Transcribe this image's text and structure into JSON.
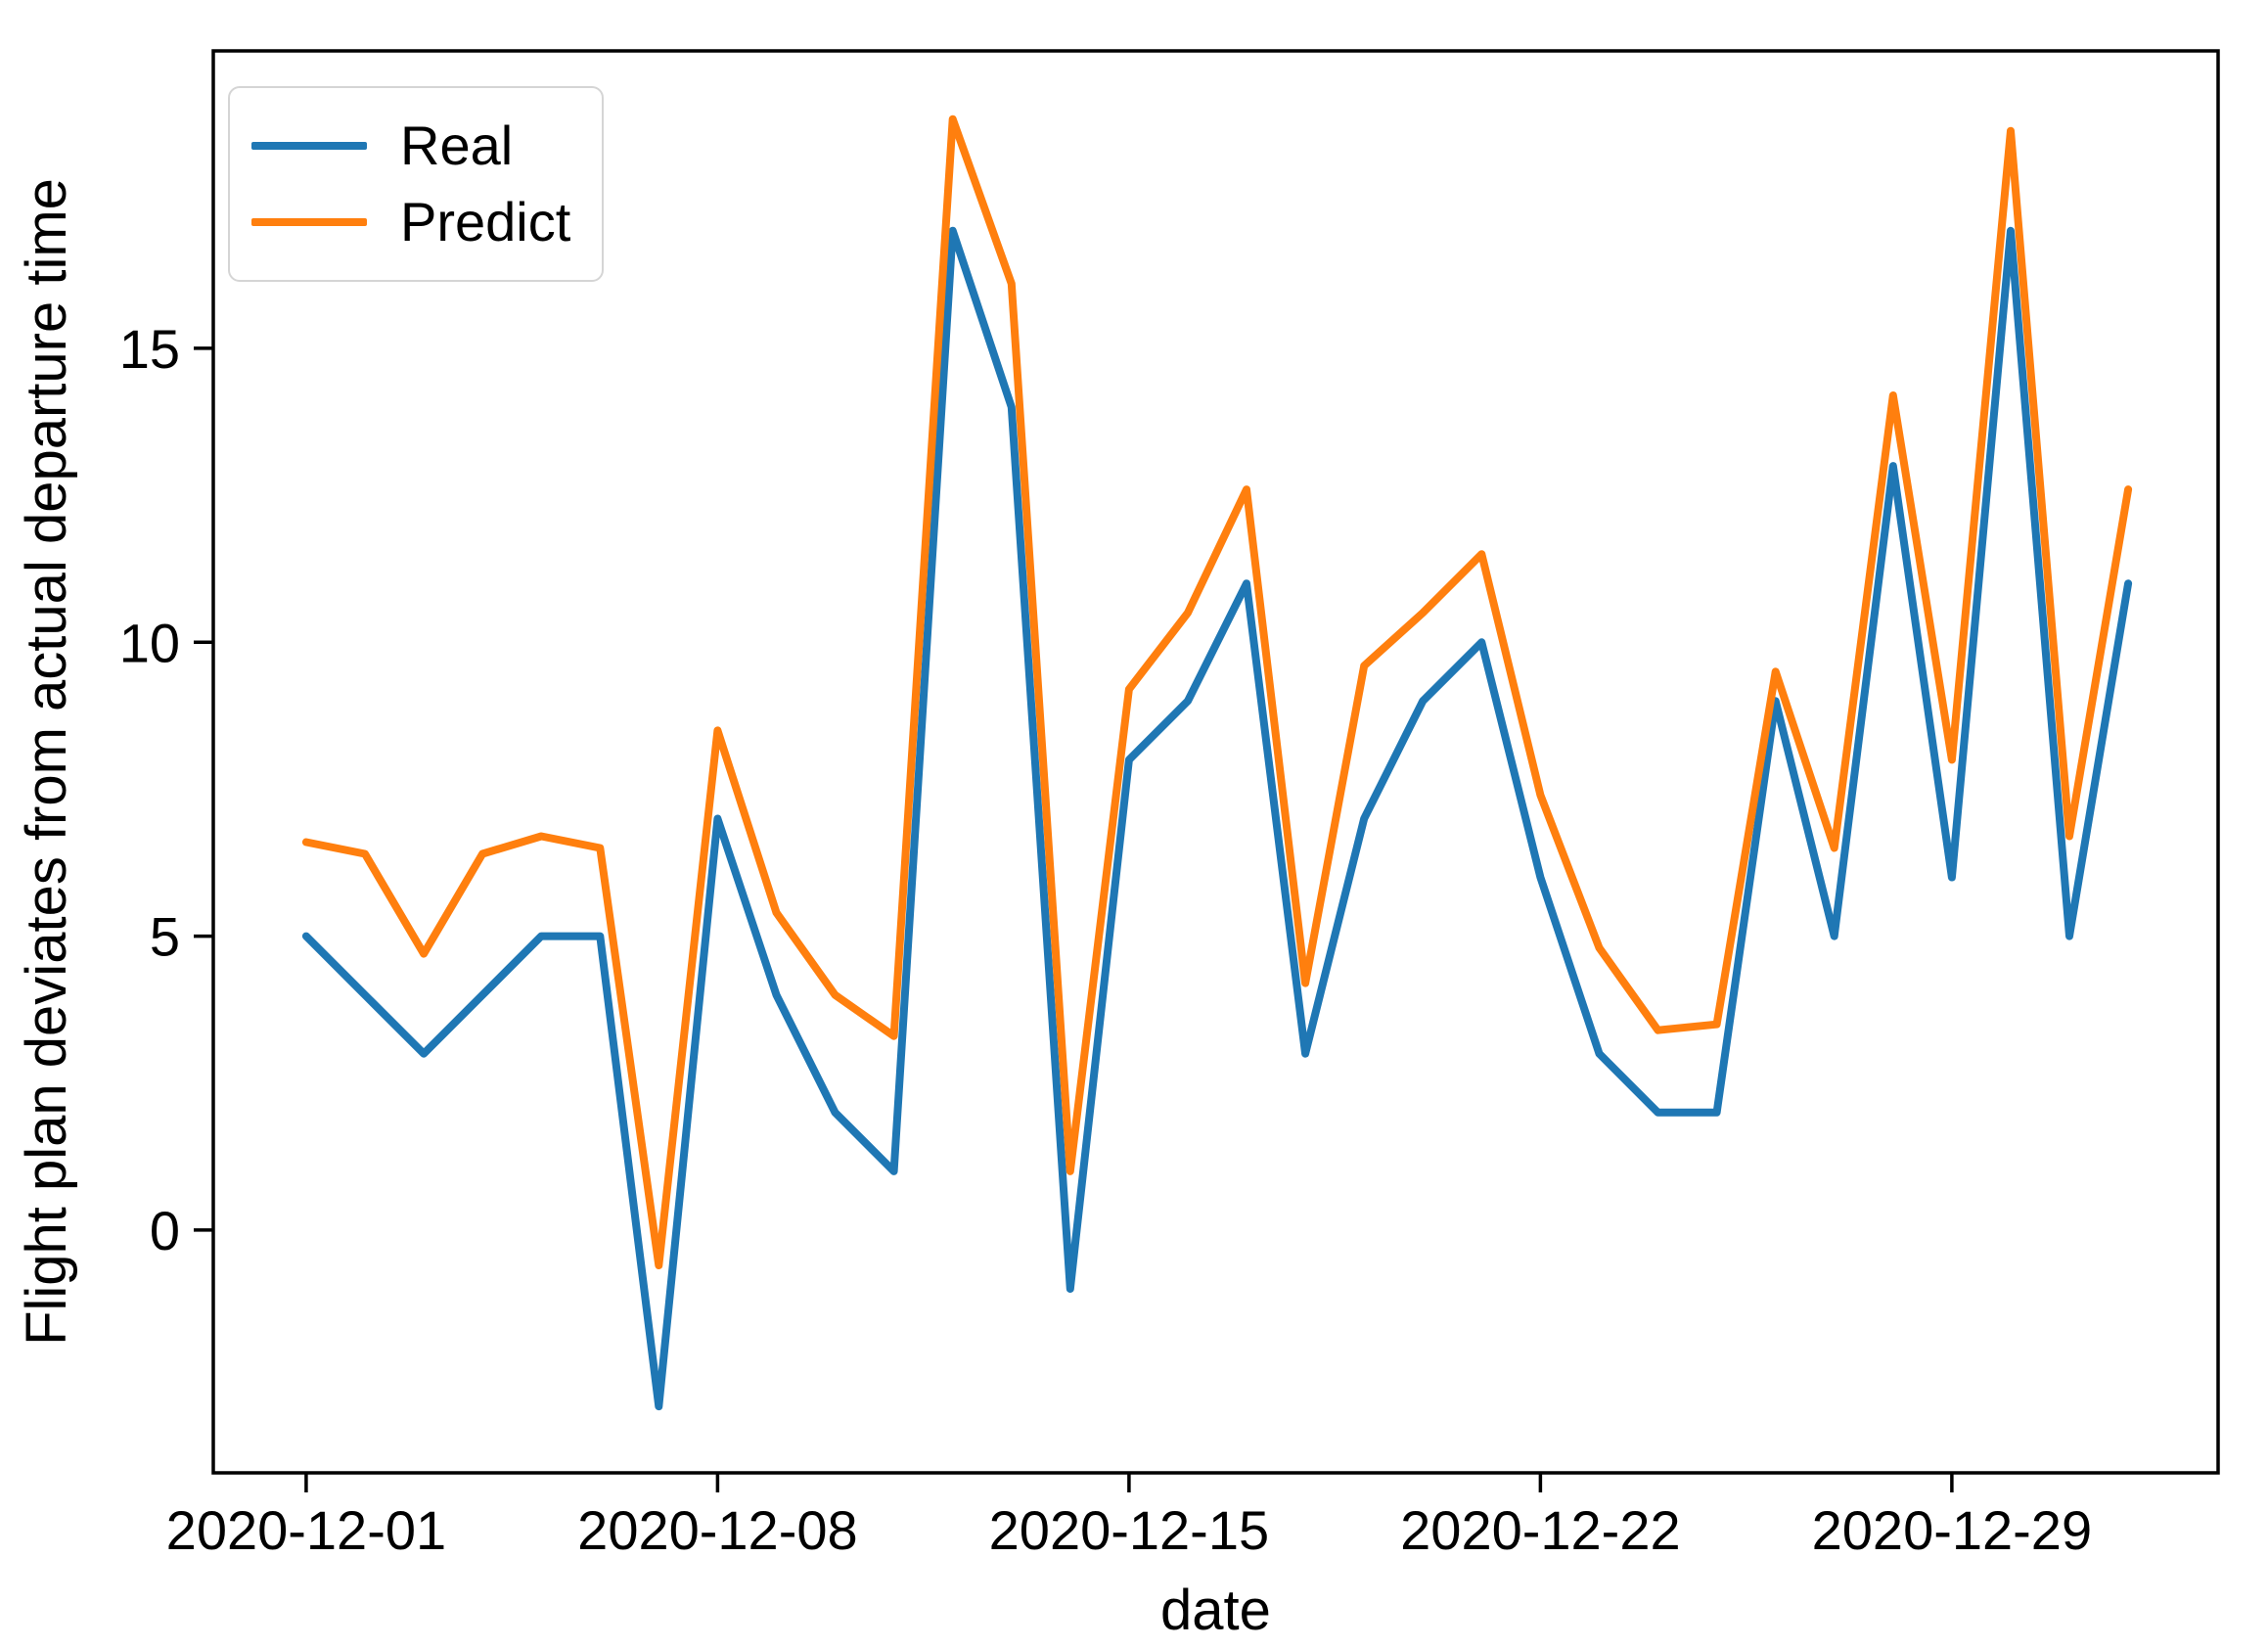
{
  "chart_data": {
    "type": "line",
    "title": "",
    "xlabel": "date",
    "ylabel": "Flight plan deviates from actual departure time",
    "x": [
      "2020-12-01",
      "2020-12-02",
      "2020-12-03",
      "2020-12-04",
      "2020-12-05",
      "2020-12-06",
      "2020-12-07",
      "2020-12-08",
      "2020-12-09",
      "2020-12-10",
      "2020-12-11",
      "2020-12-12",
      "2020-12-13",
      "2020-12-14",
      "2020-12-15",
      "2020-12-16",
      "2020-12-17",
      "2020-12-18",
      "2020-12-19",
      "2020-12-20",
      "2020-12-21",
      "2020-12-22",
      "2020-12-23",
      "2020-12-24",
      "2020-12-25",
      "2020-12-26",
      "2020-12-27",
      "2020-12-28",
      "2020-12-29",
      "2020-12-30",
      "2020-12-31",
      "2021-01-01"
    ],
    "series": [
      {
        "name": "Real",
        "color": "#1f77b4",
        "values": [
          5,
          4,
          3,
          4,
          5,
          5,
          -3,
          7,
          4,
          2,
          1,
          17,
          14,
          -1,
          8,
          9,
          11,
          3,
          7,
          9,
          10,
          6,
          3,
          2,
          2,
          9,
          5,
          13,
          6,
          17,
          5,
          11
        ]
      },
      {
        "name": "Predict",
        "color": "#ff7f0e",
        "values": [
          6.6,
          6.4,
          4.7,
          6.4,
          6.7,
          6.5,
          -0.6,
          8.5,
          5.4,
          4.0,
          3.3,
          18.9,
          16.1,
          1.0,
          9.2,
          10.5,
          12.6,
          4.2,
          9.6,
          10.5,
          11.5,
          7.4,
          4.8,
          3.4,
          3.5,
          9.5,
          6.5,
          14.2,
          8.0,
          18.7,
          6.7,
          12.6
        ]
      }
    ],
    "x_ticks": [
      {
        "index": 0,
        "label": "2020-12-01"
      },
      {
        "index": 7,
        "label": "2020-12-08"
      },
      {
        "index": 14,
        "label": "2020-12-15"
      },
      {
        "index": 21,
        "label": "2020-12-22"
      },
      {
        "index": 28,
        "label": "2020-12-29"
      }
    ],
    "y_ticks": [
      0,
      5,
      10,
      15
    ],
    "xlim": [
      -1.58,
      32.53
    ],
    "ylim": [
      -4.13,
      20.06
    ],
    "grid": false,
    "legend_position": "upper left",
    "axis_color": "#000000",
    "background_color": "#ffffff"
  },
  "legend": {
    "items": [
      {
        "label": "Real"
      },
      {
        "label": "Predict"
      }
    ]
  }
}
